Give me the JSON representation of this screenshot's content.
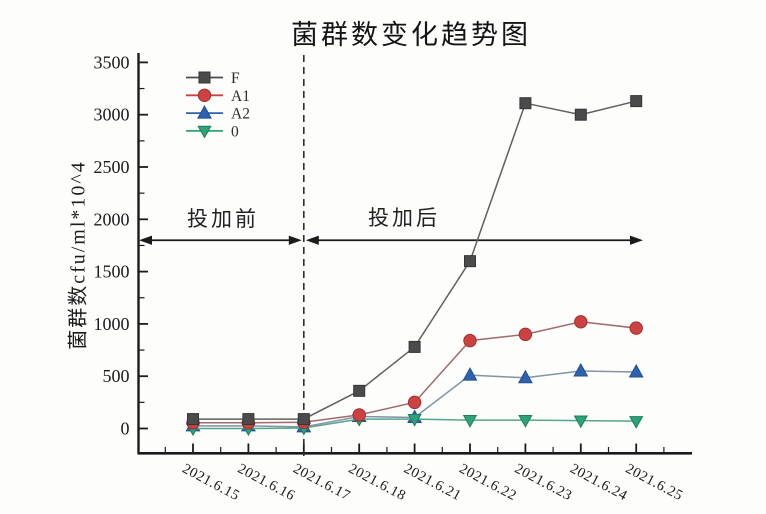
{
  "chart_data": {
    "type": "line",
    "title": "菌群数变化趋势图",
    "xlabel": "",
    "ylabel": "菌群数cfu/ml*10^4",
    "categories": [
      "2021.6.15",
      "2021.6.16",
      "2021.6.17",
      "2021.6.18",
      "2021.6.21",
      "2021.6.22",
      "2021.6.23",
      "2021.6.24",
      "2021.6.25"
    ],
    "series": [
      {
        "name": "F",
        "marker": "square",
        "color": "#4b4b4b",
        "edge_color": "#353535",
        "line_color": "#606060",
        "values": [
          90,
          90,
          90,
          360,
          780,
          1600,
          3110,
          3000,
          3130
        ]
      },
      {
        "name": "A1",
        "marker": "circle",
        "color": "#cc4243",
        "edge_color": "#a22f31",
        "line_color": "#a26a6a",
        "values": [
          55,
          55,
          60,
          130,
          250,
          840,
          900,
          1020,
          960
        ]
      },
      {
        "name": "A2",
        "marker": "triangle-up",
        "color": "#2f62ae",
        "edge_color": "#224f92",
        "line_color": "#8292a7",
        "values": [
          25,
          25,
          15,
          115,
          105,
          510,
          485,
          550,
          540
        ]
      },
      {
        "name": "0",
        "marker": "triangle-down",
        "color": "#2ea279",
        "edge_color": "#1f7d5b",
        "line_color": "#55a68b",
        "values": [
          0,
          0,
          5,
          90,
          90,
          80,
          80,
          75,
          70
        ]
      }
    ],
    "yticks": [
      0,
      500,
      1000,
      1500,
      2000,
      2500,
      3000,
      3500
    ],
    "ylim": [
      -240,
      3570
    ],
    "grid": false,
    "legend_position": "top-left",
    "annotations": {
      "before_label": "投加前",
      "after_label": "投加后",
      "divider_after_category": "2021.6.17",
      "arrow_y": 1800
    }
  }
}
